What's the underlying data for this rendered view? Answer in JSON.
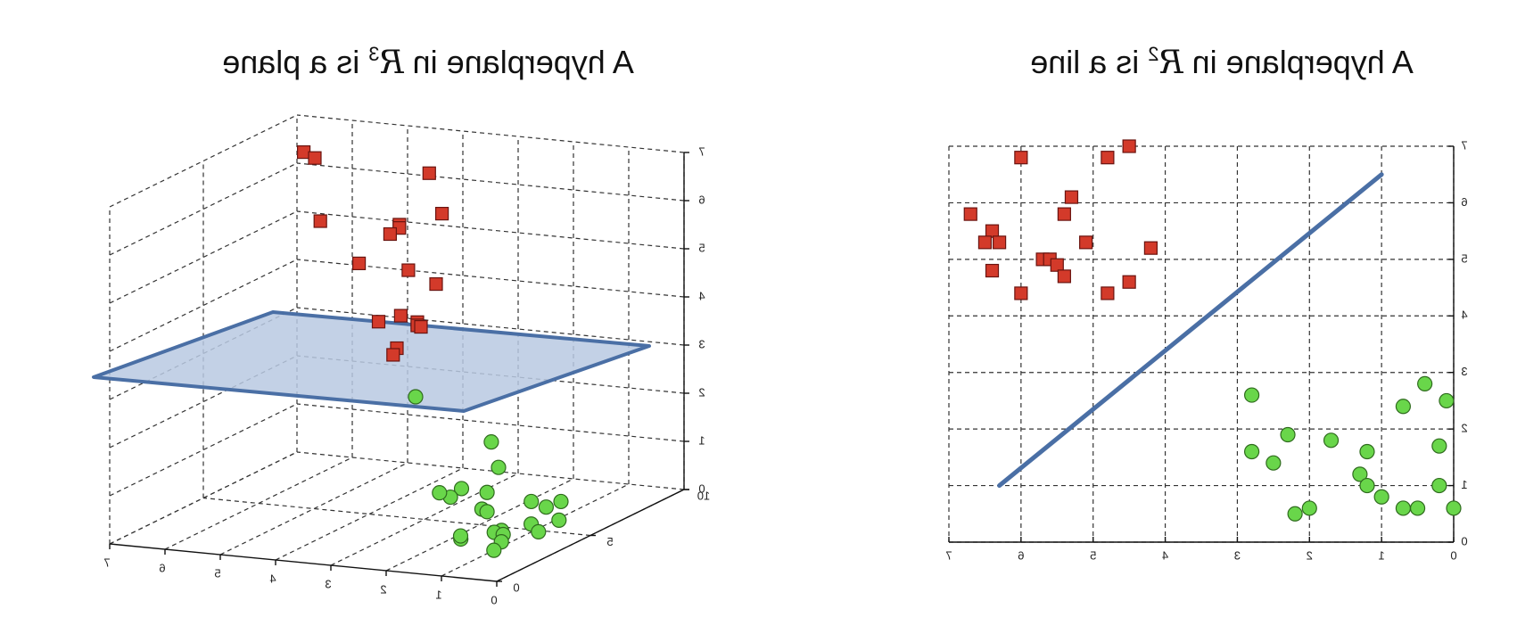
{
  "colors": {
    "class_a": "#d33a2a",
    "class_a_edge": "#6a1410",
    "class_b": "#69d64a",
    "class_b_edge": "#2f6b1e",
    "hyperplane": "#4a6fa5",
    "plane_fill": "#b8c9e2"
  },
  "chart_data": [
    {
      "type": "scatter",
      "projection": "3d",
      "title_prefix": "A hyperplane in ",
      "title_symbol": "R",
      "title_exponent": "3",
      "title_suffix": " is a plane",
      "mirrored": true,
      "xlim": [
        0,
        7
      ],
      "ylim": [
        0,
        10
      ],
      "zlim": [
        0,
        7
      ],
      "x_ticks": [
        "0",
        "1",
        "2",
        "3",
        "4",
        "5",
        "6",
        "7"
      ],
      "y_ticks": [
        "0",
        "5",
        "10"
      ],
      "z_ticks": [
        "0",
        "1",
        "2",
        "3",
        "4",
        "5",
        "6",
        "7"
      ],
      "grid": true,
      "hyperplane_z": 2.0,
      "series": [
        {
          "marker": "square",
          "points": [
            [
              6.2,
              8.0,
              6.7
            ],
            [
              6.0,
              8.0,
              6.6
            ],
            [
              5.9,
              8.0,
              5.3
            ],
            [
              5.2,
              8.0,
              4.5
            ],
            [
              4.1,
              8.5,
              6.4
            ],
            [
              4.3,
              7.5,
              5.5
            ],
            [
              4.2,
              7.2,
              5.5
            ],
            [
              4.3,
              7.0,
              5.4
            ],
            [
              3.7,
              8.0,
              5.7
            ],
            [
              3.8,
              6.5,
              4.8
            ],
            [
              3.4,
              6.8,
              4.5
            ],
            [
              4.0,
              5.5,
              3.9
            ],
            [
              3.7,
              5.8,
              4.0
            ],
            [
              3.4,
              5.8,
              3.9
            ],
            [
              3.3,
              5.5,
              3.9
            ],
            [
              3.2,
              5.4,
              3.9
            ],
            [
              3.5,
              5.0,
              3.5
            ],
            [
              3.5,
              4.8,
              3.4
            ]
          ]
        },
        {
          "marker": "circle",
          "points": [
            [
              2.0,
              6.0,
              1.0
            ],
            [
              2.5,
              5.5,
              0.6
            ],
            [
              2.7,
              5.5,
              0.4
            ],
            [
              2.3,
              6.0,
              0.1
            ],
            [
              3.0,
              5.8,
              0.4
            ],
            [
              2.3,
              6.5,
              1.4
            ],
            [
              1.7,
              4.5,
              0.8
            ],
            [
              1.7,
              4.5,
              0.4
            ],
            [
              0.9,
              4.5,
              0.7
            ],
            [
              0.8,
              5.0,
              0.5
            ],
            [
              0.5,
              4.8,
              0.3
            ],
            [
              0.8,
              4.2,
              0.3
            ],
            [
              0.6,
              4.0,
              0.2
            ],
            [
              0.6,
              5.2,
              0.6
            ],
            [
              1.2,
              3.8,
              0.2
            ],
            [
              1.4,
              4.0,
              0.1
            ],
            [
              0.9,
              3.0,
              0.3
            ],
            [
              1.0,
              3.2,
              0.1
            ],
            [
              1.7,
              3.1,
              0.1
            ],
            [
              1.0,
              2.8,
              0.0
            ],
            [
              1.5,
              2.5,
              0.3
            ]
          ]
        }
      ]
    },
    {
      "type": "scatter",
      "projection": "2d",
      "title_prefix": "A hyperplane in ",
      "title_symbol": "R",
      "title_exponent": "2",
      "title_suffix": " is a line",
      "mirrored": true,
      "xlim": [
        0,
        7
      ],
      "ylim": [
        0,
        7
      ],
      "x_ticks": [
        "0",
        "1",
        "2",
        "3",
        "4",
        "5",
        "6",
        "7"
      ],
      "y_ticks": [
        "0",
        "1",
        "2",
        "3",
        "4",
        "5",
        "6",
        "7"
      ],
      "grid": true,
      "hyperplane_line": {
        "x": [
          1.0,
          6.3
        ],
        "y": [
          6.5,
          1.0
        ]
      },
      "series": [
        {
          "marker": "square",
          "points": [
            [
              6.0,
              6.8
            ],
            [
              4.8,
              6.8
            ],
            [
              4.5,
              7.0
            ],
            [
              5.3,
              6.1
            ],
            [
              5.4,
              5.8
            ],
            [
              6.7,
              5.8
            ],
            [
              6.4,
              5.5
            ],
            [
              6.3,
              5.3
            ],
            [
              6.5,
              5.3
            ],
            [
              5.1,
              5.3
            ],
            [
              4.2,
              5.2
            ],
            [
              5.7,
              5.0
            ],
            [
              5.6,
              5.0
            ],
            [
              5.5,
              4.9
            ],
            [
              6.4,
              4.8
            ],
            [
              5.4,
              4.7
            ],
            [
              4.5,
              4.6
            ],
            [
              6.0,
              4.4
            ],
            [
              4.8,
              4.4
            ]
          ]
        },
        {
          "marker": "circle",
          "points": [
            [
              2.8,
              2.6
            ],
            [
              0.4,
              2.8
            ],
            [
              0.1,
              2.5
            ],
            [
              0.7,
              2.4
            ],
            [
              2.3,
              1.9
            ],
            [
              1.7,
              1.8
            ],
            [
              0.2,
              1.7
            ],
            [
              2.8,
              1.6
            ],
            [
              1.2,
              1.6
            ],
            [
              2.5,
              1.4
            ],
            [
              1.3,
              1.2
            ],
            [
              1.2,
              1.0
            ],
            [
              0.2,
              1.0
            ],
            [
              1.0,
              0.8
            ],
            [
              2.0,
              0.6
            ],
            [
              0.7,
              0.6
            ],
            [
              0.5,
              0.6
            ],
            [
              0.0,
              0.6
            ],
            [
              2.2,
              0.5
            ]
          ]
        }
      ]
    }
  ]
}
